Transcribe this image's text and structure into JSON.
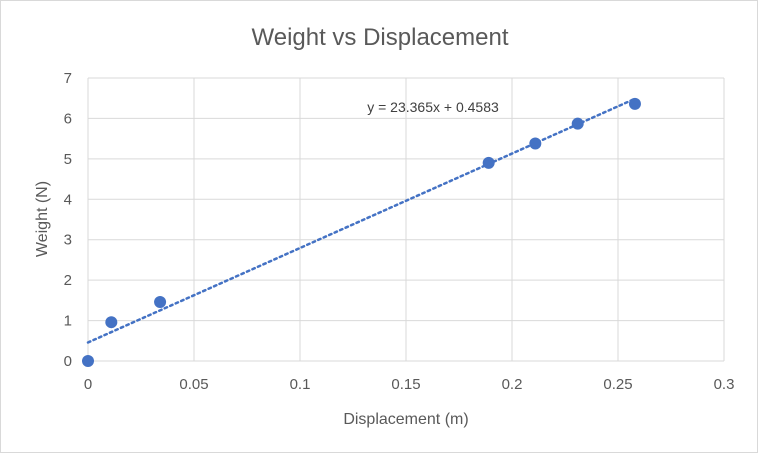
{
  "chart_data": {
    "type": "scatter",
    "title": "Weight vs Displacement",
    "xlabel": "Displacement (m)",
    "ylabel": "Weight (N)",
    "xlim": [
      0,
      0.3
    ],
    "ylim": [
      0,
      7
    ],
    "x_ticks": [
      "0",
      "0.05",
      "0.1",
      "0.15",
      "0.2",
      "0.25",
      "0.3"
    ],
    "y_ticks": [
      "0",
      "1",
      "2",
      "3",
      "4",
      "5",
      "6",
      "7"
    ],
    "grid": true,
    "points": [
      {
        "x": 0.0,
        "y": 0.0
      },
      {
        "x": 0.011,
        "y": 0.96
      },
      {
        "x": 0.034,
        "y": 1.46
      },
      {
        "x": 0.189,
        "y": 4.9
      },
      {
        "x": 0.211,
        "y": 5.38
      },
      {
        "x": 0.231,
        "y": 5.87
      },
      {
        "x": 0.258,
        "y": 6.36
      }
    ],
    "trendline": {
      "type": "linear",
      "slope": 23.365,
      "intercept": 0.4583,
      "x_range": [
        0,
        0.258
      ],
      "label": "y = 23.365x + 0.4583"
    },
    "colors": {
      "marker": "#4472c4",
      "trendline": "#4472c4",
      "grid": "#d9d9d9",
      "text": "#595959"
    }
  }
}
